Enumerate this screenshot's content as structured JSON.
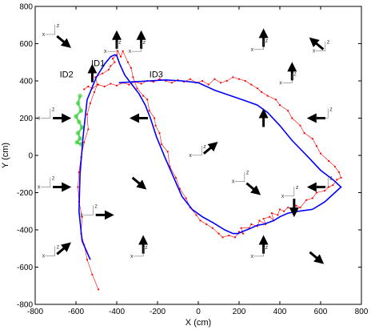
{
  "chart_data": {
    "type": "line",
    "xlabel": "X (cm)",
    "ylabel": "Y (cm)",
    "xlim": [
      -800,
      800
    ],
    "ylim": [
      -800,
      800
    ],
    "x_ticks": [
      -800,
      -600,
      -400,
      -200,
      0,
      200,
      400,
      600,
      800
    ],
    "y_ticks": [
      -800,
      -600,
      -400,
      -200,
      0,
      200,
      400,
      600,
      800
    ],
    "x_tick_labels": [
      "-800",
      "-600",
      "-400",
      "-200",
      "0",
      "200",
      "400",
      "600",
      "800"
    ],
    "y_tick_labels": [
      "-800",
      "-600",
      "-400",
      "-200",
      "0",
      "200",
      "400",
      "600",
      "800"
    ],
    "grid": false,
    "series": [
      {
        "color": "#0000ff",
        "x": [
          -530,
          -570,
          -585,
          -580,
          -565,
          -545,
          -500,
          -460,
          -430,
          -410,
          -400,
          -395,
          -385,
          -360,
          -325,
          -290,
          -260,
          -235,
          -220,
          -205,
          -190,
          -160,
          -120,
          -80,
          -30,
          20,
          70,
          130,
          170,
          195,
          215,
          250,
          290,
          320,
          345,
          370,
          400,
          440,
          490,
          560,
          620,
          670,
          700,
          660,
          600,
          540,
          460,
          400,
          340,
          290,
          240,
          160,
          80,
          0,
          -80,
          -160,
          -240,
          -320,
          -390
        ],
        "y": [
          -560,
          -460,
          -300,
          -100,
          100,
          300,
          420,
          490,
          530,
          540,
          535,
          520,
          490,
          430,
          380,
          330,
          270,
          200,
          150,
          100,
          60,
          -20,
          -120,
          -220,
          -290,
          -330,
          -360,
          -400,
          -420,
          -420,
          -410,
          -395,
          -375,
          -370,
          -360,
          -350,
          -330,
          -310,
          -300,
          -290,
          -250,
          -200,
          -170,
          -130,
          -80,
          -10,
          80,
          160,
          230,
          270,
          290,
          320,
          350,
          390,
          400,
          405,
          400,
          395,
          390
        ]
      },
      {
        "color": "#ff0000",
        "x": [
          -490,
          -520,
          -545,
          -560,
          -575,
          -570,
          -585,
          -590,
          -585,
          -575,
          -560,
          -540,
          -545,
          -530,
          -510,
          -495,
          -505,
          -470,
          -440,
          -430,
          -410,
          -420,
          -400,
          -395,
          -380,
          -370,
          -345,
          -330,
          -320,
          -300,
          -270,
          -250,
          -240,
          -215,
          -210,
          -190,
          -180,
          -150,
          -140,
          -110,
          -90,
          -60,
          -40,
          -10,
          10,
          40,
          70,
          100,
          120,
          150,
          180,
          195,
          200,
          220,
          210,
          250,
          260,
          290,
          300,
          330,
          320,
          350,
          370,
          360,
          390,
          400,
          420,
          440,
          460,
          480,
          500,
          530,
          560,
          580,
          620,
          640,
          660,
          680,
          700,
          690,
          670,
          640,
          600,
          580,
          560,
          520,
          500,
          460,
          440,
          400,
          380,
          340,
          310,
          290,
          260,
          230,
          200,
          170,
          140,
          110,
          80,
          50,
          20,
          -10,
          -40,
          -70,
          -100,
          -130,
          -160,
          -190,
          -220,
          -250,
          -280,
          -310,
          -340,
          -370,
          -400,
          -430,
          -460,
          -490,
          -520,
          -540,
          -560
        ],
        "y": [
          -720,
          -640,
          -560,
          -480,
          -420,
          -330,
          -250,
          -170,
          -90,
          -10,
          70,
          140,
          220,
          280,
          340,
          380,
          420,
          440,
          460,
          480,
          500,
          520,
          540,
          560,
          530,
          560,
          500,
          470,
          420,
          360,
          320,
          300,
          240,
          200,
          160,
          120,
          60,
          20,
          -60,
          -120,
          -180,
          -230,
          -280,
          -320,
          -350,
          -370,
          -390,
          -420,
          -440,
          -430,
          -440,
          -420,
          -410,
          -420,
          -390,
          -390,
          -370,
          -380,
          -350,
          -370,
          -340,
          -330,
          -350,
          -310,
          -320,
          -290,
          -300,
          -280,
          -290,
          -270,
          -280,
          -240,
          -230,
          -200,
          -190,
          -170,
          -160,
          -130,
          -120,
          -90,
          -60,
          -30,
          10,
          50,
          90,
          120,
          160,
          200,
          240,
          270,
          300,
          320,
          340,
          360,
          380,
          400,
          410,
          420,
          400,
          390,
          410,
          380,
          400,
          390,
          410,
          395,
          405,
          390,
          400,
          410,
          395,
          400,
          385,
          395,
          380,
          390,
          375,
          385,
          370,
          380,
          360,
          370,
          355
        ]
      },
      {
        "color": "#33cc33",
        "x": [
          -580,
          -590,
          -575,
          -600,
          -585,
          -570,
          -590,
          -580,
          -595,
          -575
        ],
        "y": [
          320,
          280,
          240,
          210,
          180,
          150,
          120,
          90,
          70,
          60
        ]
      }
    ],
    "annotations": [
      {
        "text": "ID1",
        "x": -525,
        "y": 480
      },
      {
        "text": "ID2",
        "x": -680,
        "y": 420
      },
      {
        "text": "ID3",
        "x": -240,
        "y": 420
      }
    ],
    "frame_label_letters": [
      "x",
      "z"
    ],
    "direction_markers": [
      {
        "x": -660,
        "y": 610,
        "angle_deg": -40,
        "frame": true
      },
      {
        "x": -520,
        "y": 440,
        "angle_deg": 90,
        "frame": false
      },
      {
        "x": -670,
        "y": 200,
        "angle_deg": 0,
        "frame": true
      },
      {
        "x": -670,
        "y": -170,
        "angle_deg": 0,
        "frame": true
      },
      {
        "x": -460,
        "y": -320,
        "angle_deg": 0,
        "frame": true
      },
      {
        "x": -660,
        "y": -500,
        "angle_deg": 40,
        "frame": true
      },
      {
        "x": -400,
        "y": 620,
        "angle_deg": 90,
        "frame": true
      },
      {
        "x": -290,
        "y": 200,
        "angle_deg": 180,
        "frame": false
      },
      {
        "x": -290,
        "y": -150,
        "angle_deg": -40,
        "frame": false
      },
      {
        "x": -280,
        "y": 620,
        "angle_deg": 90,
        "frame": true
      },
      {
        "x": -270,
        "y": -480,
        "angle_deg": 90,
        "frame": true
      },
      {
        "x": 320,
        "y": 630,
        "angle_deg": 90,
        "frame": true
      },
      {
        "x": 320,
        "y": -480,
        "angle_deg": 90,
        "frame": true
      },
      {
        "x": 320,
        "y": 200,
        "angle_deg": 90,
        "frame": false
      },
      {
        "x": 460,
        "y": 450,
        "angle_deg": 90,
        "frame": true
      },
      {
        "x": 470,
        "y": -280,
        "angle_deg": -90,
        "frame": true
      },
      {
        "x": 580,
        "y": 600,
        "angle_deg": 140,
        "frame": true
      },
      {
        "x": 580,
        "y": 200,
        "angle_deg": 180,
        "frame": true
      },
      {
        "x": 580,
        "y": -170,
        "angle_deg": 180,
        "frame": true
      },
      {
        "x": 580,
        "y": -550,
        "angle_deg": -40,
        "frame": false
      },
      {
        "x": 270,
        "y": -180,
        "angle_deg": -40,
        "frame": true
      },
      {
        "x": 60,
        "y": 40,
        "angle_deg": 40,
        "frame": true
      }
    ]
  }
}
